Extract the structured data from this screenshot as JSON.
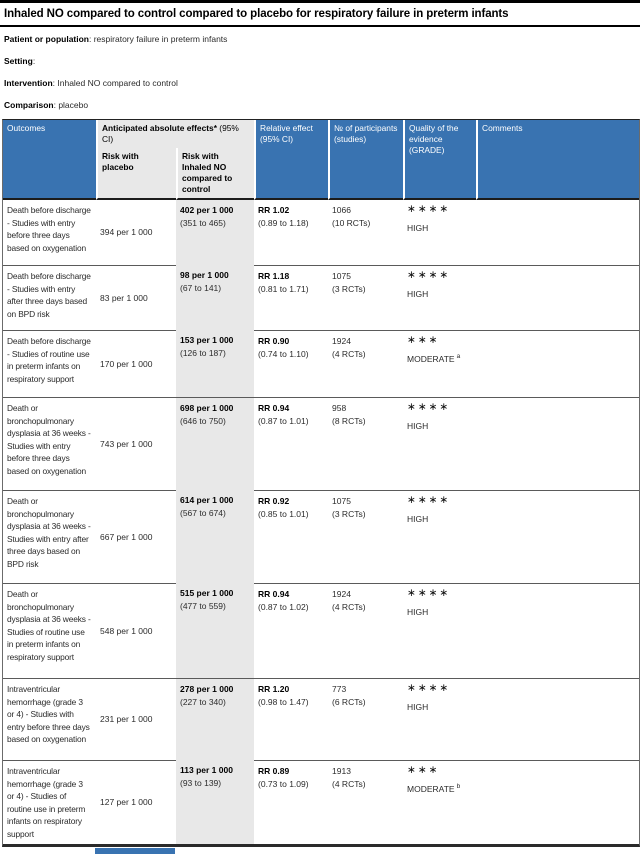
{
  "title": "Inhaled NO compared to control compared to placebo for respiratory failure in preterm infants",
  "meta": [
    {
      "label": "Patient or population",
      "value": ": respiratory failure in preterm infants"
    },
    {
      "label": "Setting",
      "value": ":"
    },
    {
      "label": "Intervention",
      "value": ": Inhaled NO compared to control"
    },
    {
      "label": "Comparison",
      "value": ": placebo"
    }
  ],
  "table": {
    "header": {
      "outcomes": "Outcomes",
      "absolute_bold": "Anticipated absolute effects* ",
      "absolute_normal": "(95% CI)",
      "risk_placebo": "Risk with placebo",
      "risk_intervention": "Risk with Inhaled NO compared to control",
      "relative_effect": "Relative effect (95% CI)",
      "participants": "№ of participants (studies)",
      "quality": "Quality of the evidence (GRADE)",
      "comments": "Comments"
    },
    "rows": [
      {
        "outcome": "Death before discharge - Studies with entry before three days based on oxygenation",
        "risk_placebo": "394 per 1 000",
        "risk_intervention": "402 per 1 000",
        "risk_intervention_ci": "(351 to 465)",
        "relative": "RR 1.02",
        "relative_ci": "(0.89 to 1.18)",
        "participants": "1066",
        "studies": "(10 RCTs)",
        "stars": "∗∗∗∗",
        "grade": "HIGH",
        "grade_footnote": "",
        "comments": ""
      },
      {
        "outcome": "Death before discharge - Studies with entry after three days based on BPD risk",
        "risk_placebo": "83 per 1 000",
        "risk_intervention": "98 per 1 000",
        "risk_intervention_ci": "(67 to 141)",
        "relative": "RR 1.18",
        "relative_ci": "(0.81 to 1.71)",
        "participants": "1075",
        "studies": "(3 RCTs)",
        "stars": "∗∗∗∗",
        "grade": "HIGH",
        "grade_footnote": "",
        "comments": ""
      },
      {
        "outcome": "Death before discharge - Studies of routine use in preterm infants on respiratory support",
        "risk_placebo": "170 per 1 000",
        "risk_intervention": "153 per 1 000",
        "risk_intervention_ci": "(126 to 187)",
        "relative": "RR 0.90",
        "relative_ci": "(0.74 to 1.10)",
        "participants": "1924",
        "studies": "(4 RCTs)",
        "stars": "∗∗∗",
        "grade": "MODERATE",
        "grade_footnote": "a",
        "comments": ""
      },
      {
        "outcome": "Death or bronchopulmonary dysplasia at 36 weeks - Studies with entry before three days based on oxygenation",
        "risk_placebo": "743 per 1 000",
        "risk_intervention": "698 per 1 000",
        "risk_intervention_ci": "(646 to 750)",
        "relative": "RR 0.94",
        "relative_ci": "(0.87 to 1.01)",
        "participants": "958",
        "studies": "(8 RCTs)",
        "stars": "∗∗∗∗",
        "grade": "HIGH",
        "grade_footnote": "",
        "comments": ""
      },
      {
        "outcome": "Death or bronchopulmonary dysplasia at 36 weeks - Studies with entry after three days based on BPD risk",
        "risk_placebo": "667 per 1 000",
        "risk_intervention": "614 per 1 000",
        "risk_intervention_ci": "(567 to 674)",
        "relative": "RR 0.92",
        "relative_ci": "(0.85 to 1.01)",
        "participants": "1075",
        "studies": "(3 RCTs)",
        "stars": "∗∗∗∗",
        "grade": "HIGH",
        "grade_footnote": "",
        "comments": ""
      },
      {
        "outcome": "Death or bronchopulmonary dysplasia at 36 weeks - Studies of routine use in preterm infants on respiratory support",
        "risk_placebo": "548 per 1 000",
        "risk_intervention": "515 per 1 000",
        "risk_intervention_ci": "(477 to 559)",
        "relative": "RR 0.94",
        "relative_ci": "(0.87 to 1.02)",
        "participants": "1924",
        "studies": "(4 RCTs)",
        "stars": "∗∗∗∗",
        "grade": "HIGH",
        "grade_footnote": "",
        "comments": ""
      },
      {
        "outcome": "Intraventricular hemorrhage (grade 3 or 4) - Studies with entry before three days based on oxygenation",
        "risk_placebo": "231 per 1 000",
        "risk_intervention": "278 per 1 000",
        "risk_intervention_ci": "(227 to 340)",
        "relative": "RR 1.20",
        "relative_ci": "(0.98 to 1.47)",
        "participants": "773",
        "studies": "(6 RCTs)",
        "stars": "∗∗∗∗",
        "grade": "HIGH",
        "grade_footnote": "",
        "comments": ""
      },
      {
        "outcome": "Intraventricular hemorrhage (grade 3 or 4) - Studies of routine use in preterm infants on respiratory support",
        "risk_placebo": "127 per 1 000",
        "risk_intervention": "113 per 1 000",
        "risk_intervention_ci": "(93 to 139)",
        "relative": "RR 0.89",
        "relative_ci": "(0.73 to 1.09)",
        "participants": "1913",
        "studies": "(4 RCTs)",
        "stars": "∗∗∗",
        "grade": "MODERATE",
        "grade_footnote": "b",
        "comments": ""
      }
    ]
  },
  "colors": {
    "header_blue": "#3973b1",
    "band_gray": "#e8e8e8",
    "rule_black": "#000000"
  }
}
